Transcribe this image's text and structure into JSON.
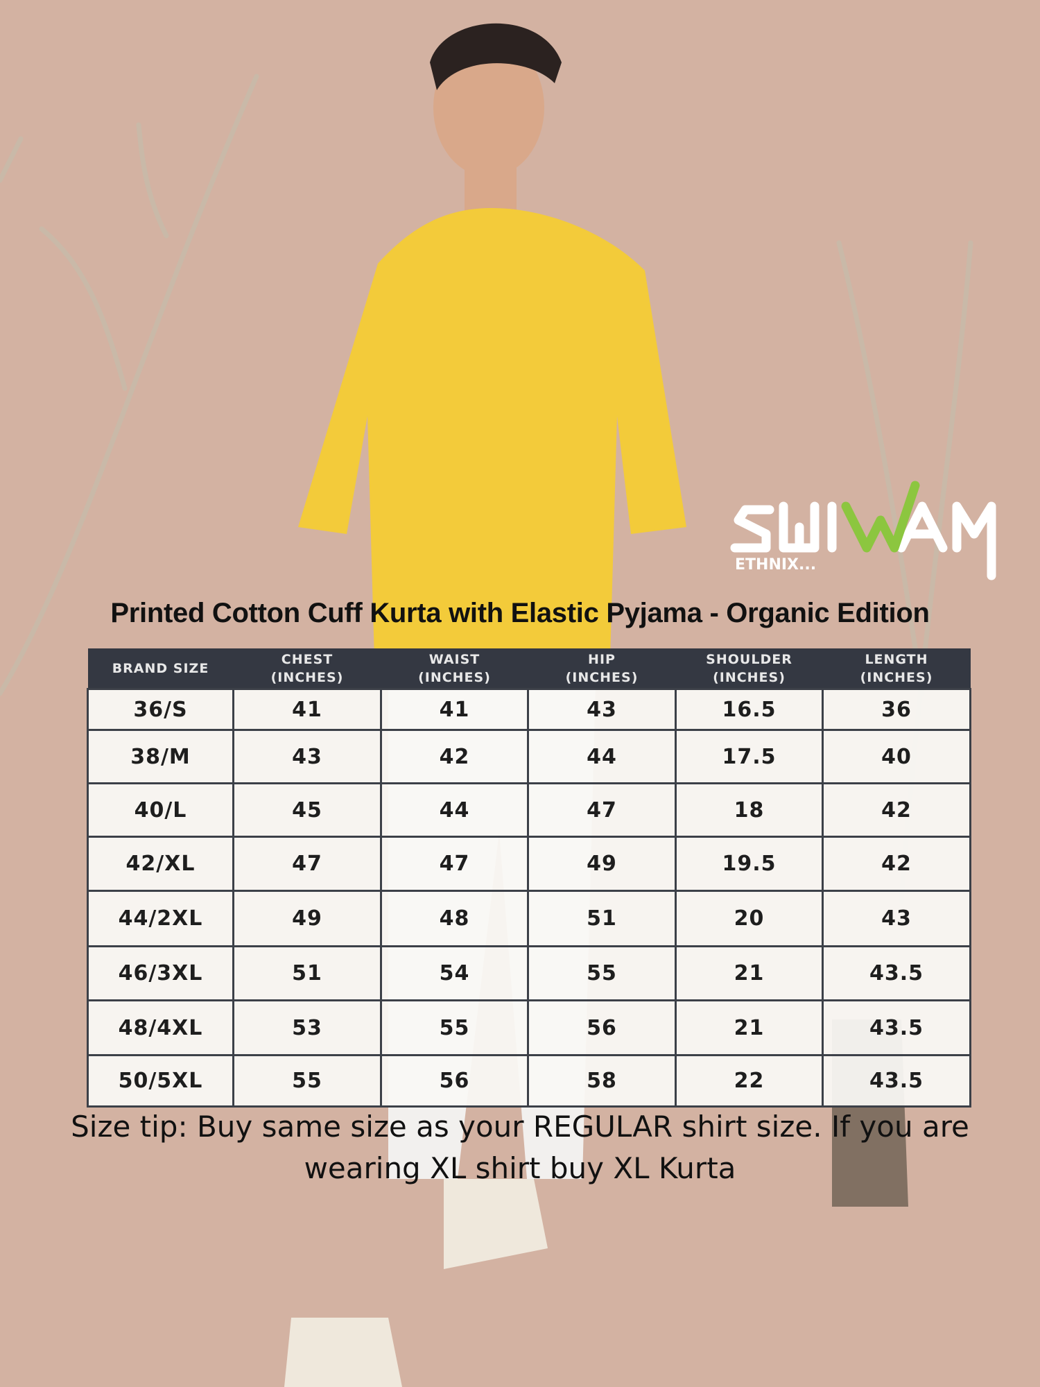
{
  "brand": {
    "name": "SHIWAM",
    "tagline": "ETHNIX...",
    "accent_color": "#8cc63f"
  },
  "title": "Printed Cotton Cuff Kurta with Elastic Pyjama  - Organic Edition",
  "size_chart": {
    "headers": [
      [
        "BRAND SIZE",
        ""
      ],
      [
        "CHEST",
        "(INCHES)"
      ],
      [
        "WAIST",
        "(INCHES)"
      ],
      [
        "HIP",
        "(INCHES)"
      ],
      [
        "SHOULDER",
        "(INCHES)"
      ],
      [
        "LENGTH",
        "(INCHES)"
      ]
    ],
    "rows": [
      [
        "36/S",
        "41",
        "41",
        "43",
        "16.5",
        "36"
      ],
      [
        "38/M",
        "43",
        "42",
        "44",
        "17.5",
        "40"
      ],
      [
        "40/L",
        "45",
        "44",
        "47",
        "18",
        "42"
      ],
      [
        "42/XL",
        "47",
        "47",
        "49",
        "19.5",
        "42"
      ],
      [
        "44/2XL",
        "49",
        "48",
        "51",
        "20",
        "43"
      ],
      [
        "46/3XL",
        "51",
        "54",
        "55",
        "21",
        "43.5"
      ],
      [
        "48/4XL",
        "53",
        "55",
        "56",
        "21",
        "43.5"
      ],
      [
        "50/5XL",
        "55",
        "56",
        "58",
        "22",
        "43.5"
      ]
    ]
  },
  "size_tip": "Size tip: Buy same size as your REGULAR shirt size. If you are wearing XL shirt buy XL Kurta"
}
